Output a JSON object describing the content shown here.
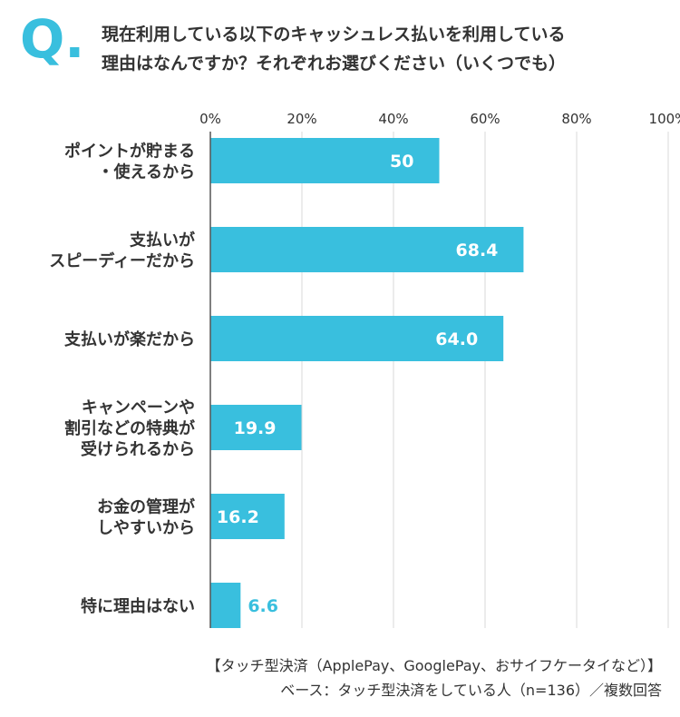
{
  "header": {
    "q_mark": "Q.",
    "question_line1": "現在利用している以下のキャッシュレス払いを利用している",
    "question_line2": "理由はなんですか？それぞれお選びください（いくつでも）"
  },
  "chart_data": {
    "type": "bar",
    "orientation": "horizontal",
    "categories": [
      [
        "ポイントが貯まる",
        "・使えるから"
      ],
      [
        "支払いが",
        "スピーディーだから"
      ],
      [
        "支払いが楽だから"
      ],
      [
        "キャンペーンや",
        "割引などの特典が",
        "受けられるから"
      ],
      [
        "お金の管理が",
        "しやすいから"
      ],
      [
        "特に理由はない"
      ]
    ],
    "values": [
      50,
      68.4,
      64.0,
      19.9,
      16.2,
      6.6
    ],
    "value_labels": [
      "50",
      "68.4",
      "64.0",
      "19.9",
      "16.2",
      "6.6"
    ],
    "xlim": [
      0,
      100
    ],
    "ticks": [
      0,
      20,
      40,
      60,
      80,
      100
    ],
    "tick_labels": [
      "0%",
      "20%",
      "40%",
      "60%",
      "80%",
      "100%"
    ],
    "grid": true,
    "bar_color": "#39bfde",
    "label_inside_color": "#ffffff",
    "label_outside_color": "#39bfde"
  },
  "footer": {
    "line1": "【タッチ型決済（ApplePay、GooglePay、おサイフケータイなど）】",
    "line2": "ベース：タッチ型決済をしている人（n=136）／複数回答"
  },
  "colors": {
    "accent": "#39bfde",
    "text": "#333333",
    "grid": "#d9d9d9"
  }
}
